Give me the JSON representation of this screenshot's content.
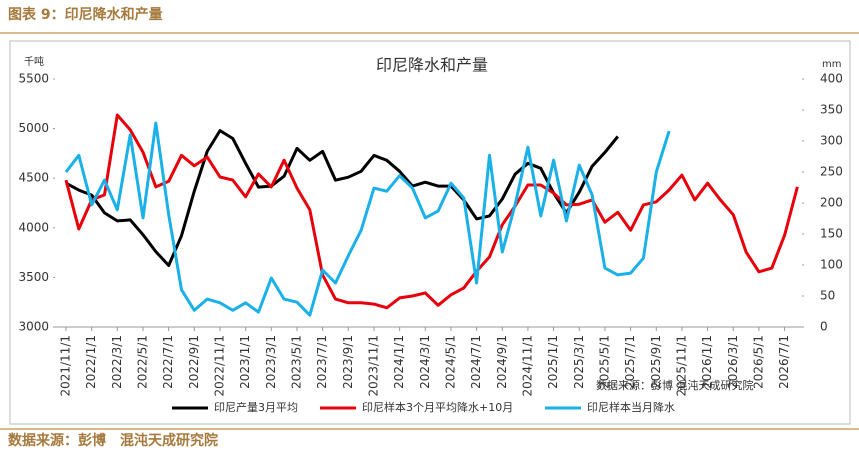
{
  "header": {
    "title": "图表 9：印尼降水和产量"
  },
  "chart_data": {
    "type": "line",
    "title": "印尼降水和产量",
    "y_label": "千吨",
    "y2_label": "mm",
    "annotation": "数据来源：彭博  混沌天成研究院",
    "categories": [
      "2021/11/1",
      null,
      "2022/1/1",
      null,
      "2022/3/1",
      null,
      "2022/5/1",
      null,
      "2022/7/1",
      null,
      "2022/9/1",
      null,
      "2022/11/1",
      null,
      "2023/1/1",
      null,
      "2023/3/1",
      null,
      "2023/5/1",
      null,
      "2023/7/1",
      null,
      "2023/9/1",
      null,
      "2023/11/1",
      null,
      "2024/1/1",
      null,
      "2024/3/1",
      null,
      "2024/5/1",
      null,
      "2024/7/1",
      null,
      "2024/9/1",
      null,
      "2024/11/1",
      null,
      "2025/1/1",
      null,
      "2025/3/1",
      null,
      "2025/5/1",
      null,
      "2025/7/1",
      null,
      "2025/9/1",
      null,
      "2025/11/1",
      null,
      "2026/1/1",
      null,
      "2026/3/1",
      null,
      "2026/5/1",
      null,
      "2026/7/1",
      null
    ],
    "series": [
      {
        "name": "印尼产量3月平均",
        "color": "#000000",
        "axis": "y",
        "values": [
          4450,
          4380,
          4330,
          4150,
          4070,
          4080,
          3930,
          3760,
          3620,
          3920,
          4370,
          4770,
          4980,
          4900,
          4650,
          4410,
          4420,
          4520,
          4800,
          4680,
          4770,
          4480,
          4510,
          4570,
          4730,
          4680,
          4570,
          4420,
          4460,
          4420,
          4420,
          4280,
          4090,
          4120,
          4290,
          4540,
          4650,
          4600,
          4350,
          4150,
          4360,
          4620,
          4760,
          4920,
          null,
          null,
          null,
          null,
          null,
          null,
          null,
          null,
          null,
          null,
          null,
          null,
          null,
          null
        ]
      },
      {
        "name": "印尼样本3个月平均降水+10月",
        "color": "#e8000b",
        "axis": "y2",
        "values": [
          237,
          158,
          205,
          213,
          342,
          318,
          282,
          226,
          235,
          277,
          260,
          274,
          242,
          237,
          210,
          247,
          226,
          269,
          224,
          189,
          84,
          45,
          39,
          39,
          37,
          31,
          47,
          50,
          55,
          35,
          52,
          63,
          90,
          113,
          165,
          195,
          229,
          229,
          216,
          197,
          198,
          205,
          169,
          185,
          156,
          197,
          202,
          221,
          245,
          205,
          232,
          205,
          181,
          121,
          89,
          95,
          148,
          226
        ]
      },
      {
        "name": "印尼样本当月降水",
        "color": "#1ab0e8",
        "axis": "y2",
        "values": [
          250,
          277,
          197,
          237,
          189,
          310,
          176,
          329,
          181,
          60,
          27,
          45,
          39,
          27,
          39,
          24,
          79,
          45,
          40,
          19,
          92,
          71,
          115,
          156,
          224,
          219,
          244,
          224,
          176,
          187,
          232,
          208,
          71,
          277,
          121,
          197,
          290,
          179,
          269,
          171,
          261,
          213,
          95,
          84,
          87,
          111,
          250,
          316,
          null,
          null,
          null,
          null,
          null,
          null,
          null,
          null,
          null,
          null
        ]
      }
    ],
    "ylim": [
      3000,
      5500
    ],
    "yticks": [
      3000,
      3500,
      4000,
      4500,
      5000,
      5500
    ],
    "y2lim": [
      0,
      400
    ],
    "y2ticks": [
      0,
      50,
      100,
      150,
      200,
      250,
      300,
      350,
      400
    ],
    "grid": false,
    "legend": "bottom"
  },
  "footer": {
    "source": "数据来源：彭博　混沌天成研究院"
  }
}
